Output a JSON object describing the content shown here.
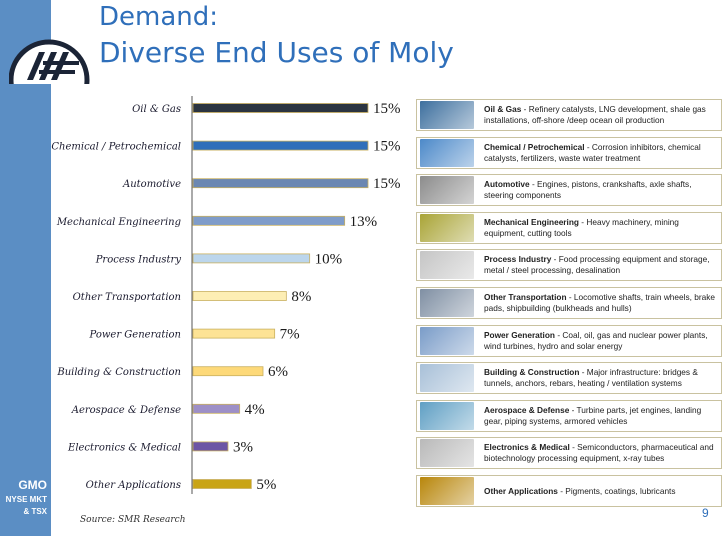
{
  "title_line1": "Demand:",
  "title_line2": "Diverse End Uses of Moly",
  "ticker": {
    "symbol": "GMO",
    "line2": "NYSE MKT",
    "line3": "& TSX"
  },
  "source": "Source: SMR Research",
  "page_number": "9",
  "chart_data": {
    "type": "bar",
    "orientation": "horizontal",
    "categories": [
      "Oil & Gas",
      "Chemical / Petrochemical",
      "Automotive",
      "Mechanical Engineering",
      "Process Industry",
      "Other Transportation",
      "Power Generation",
      "Building & Construction",
      "Aerospace & Defense",
      "Electronics & Medical",
      "Other Applications"
    ],
    "values": [
      15,
      15,
      15,
      13,
      10,
      8,
      7,
      6,
      4,
      3,
      5
    ],
    "value_labels": [
      "15%",
      "15%",
      "15%",
      "13%",
      "10%",
      "8%",
      "7%",
      "6%",
      "4%",
      "3%",
      "5%"
    ],
    "colors": [
      "#2b3440",
      "#2f6fba",
      "#6b87b2",
      "#7f9cc9",
      "#bcd6ec",
      "#fdeeb4",
      "#fde395",
      "#fdd979",
      "#9d8fc7",
      "#6c55a5",
      "#c9a416"
    ],
    "xlim": [
      0,
      15
    ],
    "grid": false,
    "legend": "none"
  },
  "descriptions": [
    {
      "bold": "Oil & Gas",
      "text": " - Refinery catalysts, LNG development,  shale gas installations, off-shore /deep ocean oil production",
      "thumb": "#3d6f9e"
    },
    {
      "bold": "Chemical / Petrochemical",
      "text": " - Corrosion inhibitors, chemical catalysts, fertilizers, waste water treatment",
      "thumb": "#4c89c9"
    },
    {
      "bold": "Automotive",
      "text": " - Engines, pistons, crankshafts, axle shafts, steering components",
      "thumb": "#8c8c8c"
    },
    {
      "bold": "Mechanical Engineering",
      "text": " - Heavy machinery, mining equipment, cutting tools",
      "thumb": "#a9a436"
    },
    {
      "bold": "Process Industry",
      "text": " - Food processing equipment and storage, metal / steel processing, desalination",
      "thumb": "#c5c5c5"
    },
    {
      "bold": "Other Transportation",
      "text": " - Locomotive shafts, train wheels, brake pads, shipbuilding (bulkheads and hulls)",
      "thumb": "#7f8fa3"
    },
    {
      "bold": "Power Generation",
      "text": " - Coal, oil, gas and nuclear power plants, wind turbines, hydro and solar energy",
      "thumb": "#7a9cc8"
    },
    {
      "bold": "Building & Construction",
      "text": " - Major infrastructure: bridges & tunnels, anchors, rebars, heating / ventilation systems",
      "thumb": "#a8c0d8"
    },
    {
      "bold": "Aerospace & Defense",
      "text": " - Turbine parts, jet engines, landing gear, piping systems, armored vehicles",
      "thumb": "#5f9fc4"
    },
    {
      "bold": "Electronics & Medical",
      "text": " - Semiconductors, pharmaceutical and biotechnology processing equipment, x-ray tubes",
      "thumb": "#b9b9b9"
    },
    {
      "bold": "Other Applications",
      "text": " - Pigments, coatings, lubricants",
      "thumb": "#b8860b"
    }
  ]
}
